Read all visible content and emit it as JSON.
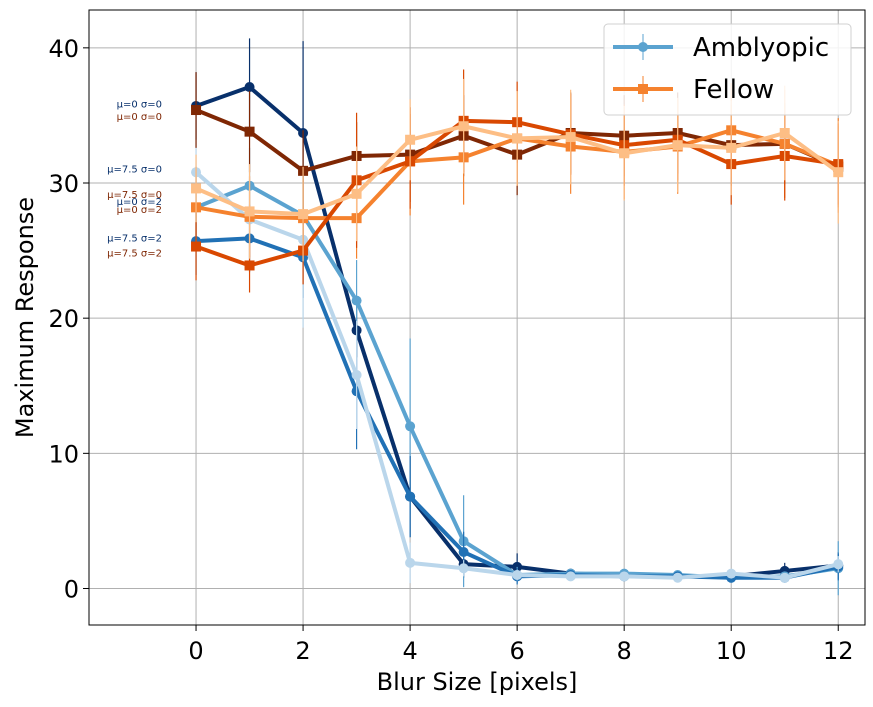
{
  "chart_data": {
    "type": "line",
    "title": "",
    "xlabel": "Blur Size [pixels]",
    "ylabel": "Maximum Response",
    "xlim": [
      -2,
      12.5
    ],
    "ylim": [
      -2.7,
      42.8
    ],
    "xticks": [
      0,
      2,
      4,
      6,
      8,
      10,
      12
    ],
    "yticks": [
      0,
      10,
      20,
      30,
      40
    ],
    "grid": true,
    "legend_position": "top-right",
    "legend": [
      {
        "label": "Amblyopic",
        "color": "#5ba3d0",
        "marker": "circle"
      },
      {
        "label": "Fellow",
        "color": "#f5822e",
        "marker": "square"
      }
    ],
    "x": [
      0,
      1,
      2,
      3,
      4,
      5,
      6,
      7,
      8,
      9,
      10,
      11,
      12
    ],
    "series": [
      {
        "name": "Amblyopic μ=0 σ=0",
        "group": "Amblyopic",
        "marker": "circle",
        "color": "#08306b",
        "values": [
          35.7,
          37.1,
          33.7,
          19.1,
          6.8,
          1.8,
          1.6,
          1.1,
          1.0,
          0.9,
          0.9,
          1.3,
          1.7
        ],
        "errors": [
          2.5,
          3.6,
          6.8,
          2.0,
          3.0,
          1.0,
          1.0,
          0.3,
          0.3,
          0.3,
          0.3,
          0.6,
          1.0
        ]
      },
      {
        "name": "Amblyopic μ=7.5 σ=0",
        "group": "Amblyopic",
        "marker": "circle",
        "color": "#5ba3d0",
        "values": [
          28.2,
          29.8,
          27.6,
          21.3,
          12.0,
          3.5,
          1.0,
          1.1,
          1.1,
          1.0,
          0.8,
          0.9,
          1.5
        ],
        "errors": [
          3.0,
          2.8,
          3.5,
          3.0,
          6.5,
          3.4,
          0.6,
          0.3,
          0.3,
          0.3,
          0.3,
          0.3,
          2.0
        ]
      },
      {
        "name": "Amblyopic μ=0 σ=2",
        "group": "Amblyopic",
        "marker": "circle",
        "color": "#2171b5",
        "values": [
          25.7,
          25.9,
          24.5,
          14.6,
          6.8,
          2.7,
          0.9,
          1.0,
          0.9,
          0.9,
          0.8,
          0.8,
          1.6
        ],
        "errors": [
          2.5,
          2.5,
          3.0,
          4.3,
          3.0,
          1.5,
          0.6,
          0.3,
          0.3,
          0.3,
          0.3,
          0.3,
          1.0
        ]
      },
      {
        "name": "Amblyopic μ=7.5 σ=2",
        "group": "Amblyopic",
        "marker": "circle",
        "color": "#bad6eb",
        "values": [
          30.8,
          27.3,
          25.8,
          15.8,
          1.9,
          1.5,
          1.0,
          0.9,
          0.9,
          0.8,
          1.1,
          0.8,
          1.8
        ],
        "errors": [
          2.5,
          3.0,
          6.5,
          4.0,
          1.5,
          0.6,
          0.4,
          0.3,
          0.3,
          0.3,
          0.3,
          0.3,
          0.6
        ]
      },
      {
        "name": "Fellow μ=0 σ=0",
        "group": "Fellow",
        "marker": "square",
        "color": "#7f2704",
        "values": [
          35.4,
          33.8,
          30.9,
          32.0,
          32.1,
          33.5,
          32.1,
          33.7,
          33.5,
          33.7,
          32.8,
          32.9,
          31.2
        ],
        "errors": [
          2.8,
          3.0,
          3.0,
          2.5,
          3.5,
          3.0,
          3.0,
          3.0,
          3.0,
          3.0,
          3.0,
          3.0,
          3.0
        ]
      },
      {
        "name": "Fellow μ=7.5 σ=0",
        "group": "Fellow",
        "marker": "square",
        "color": "#f5822e",
        "values": [
          28.2,
          27.5,
          27.4,
          27.4,
          31.6,
          31.9,
          33.3,
          32.7,
          32.3,
          32.7,
          33.9,
          32.9,
          31.3
        ],
        "errors": [
          3.0,
          3.0,
          3.0,
          3.0,
          4.0,
          3.5,
          3.5,
          3.5,
          3.5,
          3.5,
          3.5,
          4.0,
          3.5
        ]
      },
      {
        "name": "Fellow μ=0 σ=2",
        "group": "Fellow",
        "marker": "square",
        "color": "#d94801",
        "values": [
          25.3,
          23.9,
          25.0,
          30.2,
          31.6,
          34.6,
          34.5,
          33.6,
          32.8,
          33.2,
          31.4,
          32.0,
          31.4
        ],
        "errors": [
          2.5,
          2.0,
          2.5,
          5.0,
          3.5,
          3.8,
          3.0,
          3.0,
          3.0,
          3.0,
          3.0,
          3.3,
          3.0
        ]
      },
      {
        "name": "Fellow μ=7.5 σ=2",
        "group": "Fellow",
        "marker": "square",
        "color": "#fdbe85",
        "values": [
          29.6,
          27.9,
          27.7,
          29.2,
          33.2,
          34.2,
          33.3,
          33.4,
          32.2,
          32.8,
          32.6,
          33.7,
          30.8
        ],
        "errors": [
          2.5,
          3.5,
          3.5,
          3.5,
          3.0,
          3.5,
          3.5,
          3.5,
          3.5,
          3.5,
          3.5,
          3.5,
          3.8
        ]
      }
    ],
    "annotations": [
      {
        "text": "μ=0 σ=0",
        "y": 35.8,
        "color": "#08306b"
      },
      {
        "text": "μ=0 σ=0",
        "y": 34.9,
        "color": "#7f2704"
      },
      {
        "text": "μ=7.5 σ=0",
        "y": 31.0,
        "color": "#08306b"
      },
      {
        "text": "μ=7.5 σ=0",
        "y": 29.1,
        "color": "#7f2704"
      },
      {
        "text": "μ=0 σ=2",
        "y": 28.6,
        "color": "#08306b"
      },
      {
        "text": "μ=0 σ=2",
        "y": 28.0,
        "color": "#7f2704"
      },
      {
        "text": "μ=7.5 σ=2",
        "y": 25.9,
        "color": "#08306b"
      },
      {
        "text": "μ=7.5 σ=2",
        "y": 24.8,
        "color": "#7f2704"
      }
    ]
  }
}
